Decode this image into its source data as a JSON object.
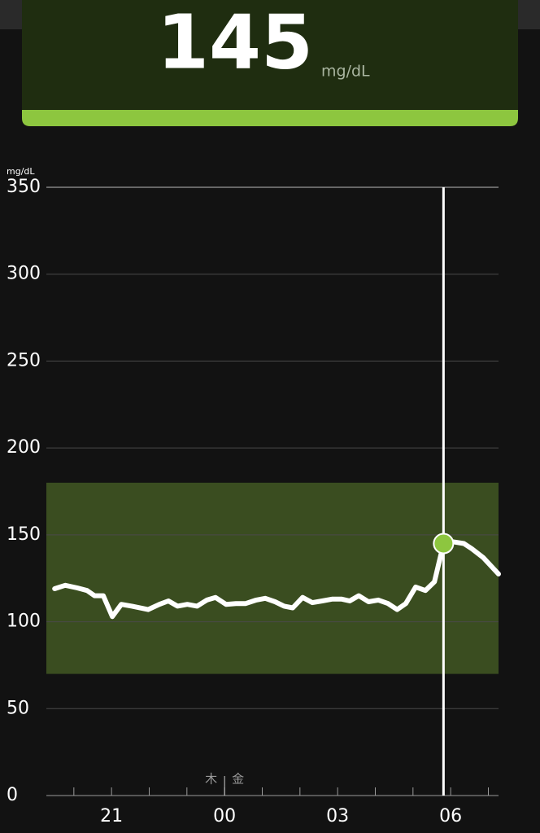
{
  "header": {
    "value": 145,
    "unit": "mg/dL"
  },
  "chart_data": {
    "type": "line",
    "y_unit": "mg/dL",
    "x": [
      19.49,
      19.77,
      20.09,
      20.35,
      20.55,
      20.78,
      21.02,
      21.26,
      21.54,
      21.97,
      22.27,
      22.51,
      22.75,
      23.01,
      23.27,
      23.53,
      23.76,
      24.04,
      24.3,
      24.56,
      24.84,
      25.08,
      25.34,
      25.58,
      25.81,
      26.07,
      26.33,
      26.59,
      26.85,
      27.11,
      27.32,
      27.56,
      27.82,
      28.08,
      28.34,
      28.58,
      28.81,
      29.07,
      29.33,
      29.57,
      29.81,
      30.07,
      30.35,
      30.56,
      30.86,
      31.27
    ],
    "values": [
      119,
      121,
      119.5,
      118,
      115,
      115,
      103,
      110,
      109,
      107,
      110,
      112,
      109,
      110,
      109,
      112.5,
      114,
      110,
      110.5,
      110.5,
      112.5,
      113.5,
      111.5,
      109,
      108,
      114,
      111,
      112,
      113,
      113,
      112,
      115,
      111.5,
      112.5,
      110.5,
      107,
      110.5,
      120,
      118,
      123,
      145,
      146,
      145,
      142,
      137,
      127.5
    ],
    "color": "#ffffff",
    "target_range": [
      70,
      180
    ],
    "target_color": "#3a4d20",
    "cursor": {
      "x": 29.81,
      "y": 145,
      "color": "#8dc63f"
    },
    "xlim": [
      19.27,
      31.27
    ],
    "xticks": [
      21,
      {
        "value": 24,
        "label": "00"
      },
      {
        "value": 27,
        "label": "03"
      },
      {
        "value": 30,
        "label": "06"
      }
    ],
    "x_minor_ticks": [
      20,
      21,
      22,
      23,
      24,
      25,
      26,
      27,
      28,
      29,
      30,
      31
    ],
    "day_divider": {
      "x": 24,
      "before": "木",
      "after": "金"
    },
    "ylim": [
      0,
      350
    ],
    "yticks": [
      0,
      50,
      100,
      150,
      200,
      250,
      300,
      350
    ],
    "grid": true
  }
}
